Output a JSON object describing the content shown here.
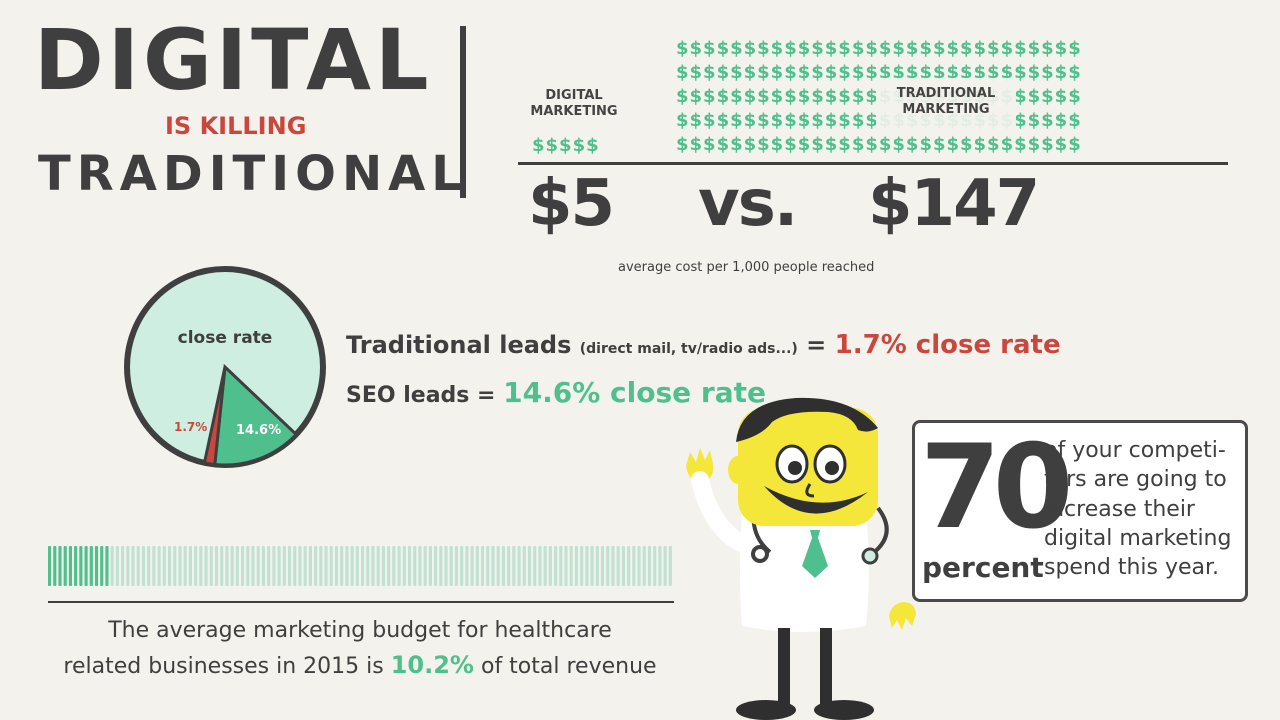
{
  "title": {
    "line1": "DIGITAL",
    "line2": "IS KILLING",
    "line3": "TRADITIONAL"
  },
  "cost": {
    "digital_label_line1": "DIGITAL",
    "digital_label_line2": "MARKETING",
    "traditional_label_line1": "TRADITIONAL",
    "traditional_label_line2": "MARKETING",
    "digital_value": "$5",
    "vs": "vs.",
    "traditional_value": "$147",
    "caption": "average cost per 1,000 people reached",
    "digital_dollars": "$$$$$",
    "traditional_dollars": "$$$$$$$$$$$$$$$$$$$$$$$$$$$$$$"
  },
  "close_rate": {
    "pie_title": "close rate",
    "traditional_pct_label": "1.7%",
    "seo_pct_label": "14.6%",
    "traditional_value": 1.7,
    "seo_value": 14.6,
    "traditional_text": "Traditional leads",
    "traditional_paren": "(direct mail, tv/radio ads...)",
    "equals": "=",
    "traditional_rate_text": "1.7% close rate",
    "seo_text": "SEO leads =",
    "seo_rate_text": "14.6% close rate"
  },
  "budget": {
    "percent_value": 10.2,
    "text_line1": "The average marketing budget for healthcare",
    "text_line2_before": "related businesses in 2015 is",
    "highlight": "10.2%",
    "text_line2_after": "of total revenue"
  },
  "callout": {
    "number": "70",
    "unit": "percent",
    "text": "of your competi- tors are going to increase their digital marketing spend this year."
  },
  "colors": {
    "background": "#f4f2ec",
    "dark": "#3f3f3f",
    "green": "#4fbf8e",
    "red": "#c9473c",
    "pie_light": "#cdeee0",
    "doctor_face": "#f5e63a"
  }
}
